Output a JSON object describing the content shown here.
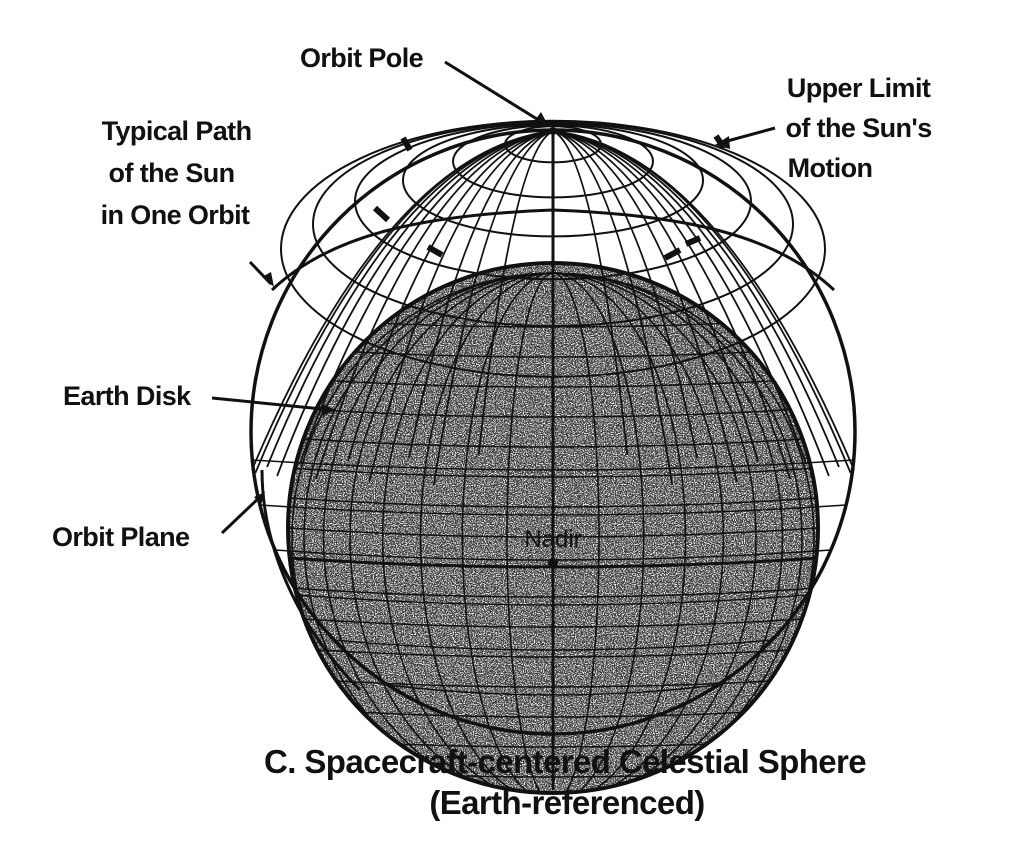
{
  "labels": {
    "orbit_pole": "Orbit Pole",
    "upper_limit": [
      "Upper Limit",
      "of the Sun's",
      "Motion"
    ],
    "typical_path": [
      "Typical Path",
      "of the Sun",
      "in One Orbit"
    ],
    "earth_disk": "Earth Disk",
    "orbit_plane": "Orbit Plane",
    "nadir": "Nadir"
  },
  "caption": {
    "line1": "C. Spacecraft-centered Celestial Sphere",
    "line2": "(Earth-referenced)"
  },
  "colors": {
    "ink": "#111111",
    "paper": "#ffffff",
    "earth_stipple": "#9a9a9a"
  }
}
